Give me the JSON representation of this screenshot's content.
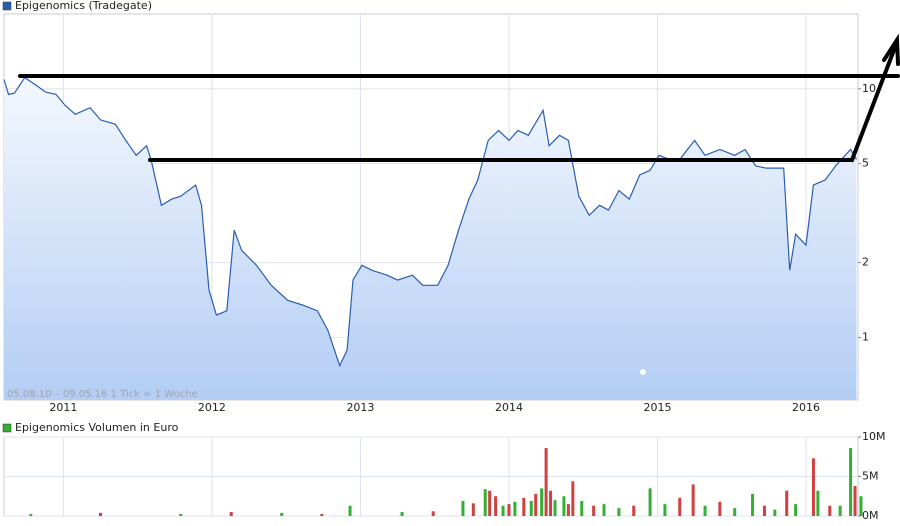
{
  "chart_data": [
    {
      "type": "line",
      "log_scale": true,
      "grid": true,
      "annotation": "05.08.10 – 09.05.16   1 Tick = 1 Woche",
      "xlim": [
        2010.6,
        2016.35
      ],
      "xticks": [
        2011,
        2012,
        2013,
        2014,
        2015,
        2016
      ],
      "ylim": [
        0.56,
        20
      ],
      "yticks": [
        1,
        2,
        5,
        10
      ],
      "series": [
        {
          "name": "Epigenomics (Tradegate)",
          "color": "#2a5db0",
          "x": [
            2010.6,
            2010.63,
            2010.67,
            2010.74,
            2010.81,
            2010.88,
            2010.95,
            2011.01,
            2011.08,
            2011.18,
            2011.25,
            2011.35,
            2011.42,
            2011.49,
            2011.56,
            2011.59,
            2011.66,
            2011.73,
            2011.79,
            2011.89,
            2011.93,
            2011.98,
            2012.03,
            2012.1,
            2012.15,
            2012.2,
            2012.3,
            2012.4,
            2012.51,
            2012.61,
            2012.71,
            2012.78,
            2012.86,
            2012.91,
            2012.95,
            2013.01,
            2013.08,
            2013.18,
            2013.25,
            2013.35,
            2013.42,
            2013.52,
            2013.59,
            2013.66,
            2013.73,
            2013.79,
            2013.86,
            2013.93,
            2014.0,
            2014.06,
            2014.13,
            2014.23,
            2014.27,
            2014.34,
            2014.4,
            2014.47,
            2014.54,
            2014.61,
            2014.67,
            2014.74,
            2014.81,
            2014.88,
            2014.95,
            2015.01,
            2015.08,
            2015.15,
            2015.25,
            2015.32,
            2015.42,
            2015.52,
            2015.59,
            2015.66,
            2015.73,
            2015.85,
            2015.89,
            2015.93,
            2016.0,
            2016.05,
            2016.13,
            2016.2,
            2016.3,
            2016.34
          ],
          "values": [
            10.9,
            9.5,
            9.6,
            11.1,
            10.4,
            9.7,
            9.5,
            8.6,
            7.9,
            8.4,
            7.5,
            7.2,
            6.2,
            5.4,
            5.9,
            5.2,
            3.4,
            3.6,
            3.7,
            4.1,
            3.4,
            1.55,
            1.23,
            1.28,
            2.7,
            2.24,
            1.95,
            1.62,
            1.41,
            1.35,
            1.28,
            1.07,
            0.77,
            0.89,
            1.7,
            1.95,
            1.86,
            1.78,
            1.7,
            1.78,
            1.62,
            1.62,
            1.95,
            2.7,
            3.6,
            4.3,
            6.2,
            6.8,
            6.2,
            6.8,
            6.5,
            8.2,
            5.9,
            6.5,
            6.2,
            3.7,
            3.1,
            3.4,
            3.25,
            3.9,
            3.6,
            4.5,
            4.7,
            5.4,
            5.2,
            5.2,
            6.2,
            5.4,
            5.7,
            5.4,
            5.7,
            4.9,
            4.8,
            4.8,
            1.86,
            2.6,
            2.35,
            4.1,
            4.3,
            4.9,
            5.7,
            5.2
          ]
        }
      ]
    },
    {
      "type": "bar",
      "xlim": [
        2010.6,
        2016.35
      ],
      "ylim": [
        0,
        10000000
      ],
      "yticks": [
        {
          "value": 0,
          "label": "0M"
        },
        {
          "value": 5000000,
          "label": "5M"
        },
        {
          "value": 10000000,
          "label": "10M"
        }
      ],
      "series": [
        {
          "name": "Epigenomics Volumen in Euro",
          "color": "#33b033",
          "x": [
            2010.78,
            2011.25,
            2011.79,
            2012.13,
            2012.47,
            2012.74,
            2012.93,
            2013.28,
            2013.49,
            2013.69,
            2013.76,
            2013.84,
            2013.87,
            2013.91,
            2013.96,
            2014.0,
            2014.04,
            2014.1,
            2014.15,
            2014.18,
            2014.22,
            2014.25,
            2014.28,
            2014.31,
            2014.37,
            2014.4,
            2014.43,
            2014.49,
            2014.57,
            2014.64,
            2014.74,
            2014.84,
            2014.95,
            2015.05,
            2015.15,
            2015.24,
            2015.32,
            2015.42,
            2015.52,
            2015.64,
            2015.72,
            2015.79,
            2015.87,
            2015.93,
            2016.05,
            2016.08,
            2016.16,
            2016.23,
            2016.3,
            2016.33,
            2016.37
          ],
          "values": [
            250000,
            400000,
            250000,
            500000,
            400000,
            250000,
            1300000,
            500000,
            600000,
            1900000,
            1600000,
            3400000,
            3200000,
            2500000,
            1300000,
            1500000,
            1800000,
            2300000,
            1900000,
            2800000,
            3500000,
            8600000,
            3200000,
            2000000,
            2500000,
            1500000,
            4400000,
            1900000,
            1300000,
            1500000,
            1000000,
            1300000,
            3500000,
            1500000,
            2300000,
            4000000,
            1300000,
            1800000,
            1000000,
            2800000,
            1300000,
            800000,
            3200000,
            1500000,
            7300000,
            3200000,
            1300000,
            1300000,
            8600000,
            3800000,
            2500000
          ],
          "colors": [
            "#33b033",
            "#d04040",
            "#33b033",
            "#d04040",
            "#33b033",
            "#d04040",
            "#33b033",
            "#33b033",
            "#d04040",
            "#33b033",
            "#d04040",
            "#33b033",
            "#d04040",
            "#d04040",
            "#33b033",
            "#d04040",
            "#33b033",
            "#d04040",
            "#33b033",
            "#d04040",
            "#33b033",
            "#d04040",
            "#d04040",
            "#33b033",
            "#33b033",
            "#d04040",
            "#d04040",
            "#33b033",
            "#d04040",
            "#33b033",
            "#33b033",
            "#d04040",
            "#33b033",
            "#33b033",
            "#d04040",
            "#d04040",
            "#33b033",
            "#d04040",
            "#33b033",
            "#33b033",
            "#d04040",
            "#33b033",
            "#d04040",
            "#33b033",
            "#d04040",
            "#33b033",
            "#d04040",
            "#33b033",
            "#33b033",
            "#d04040",
            "#33b033"
          ]
        }
      ]
    }
  ]
}
